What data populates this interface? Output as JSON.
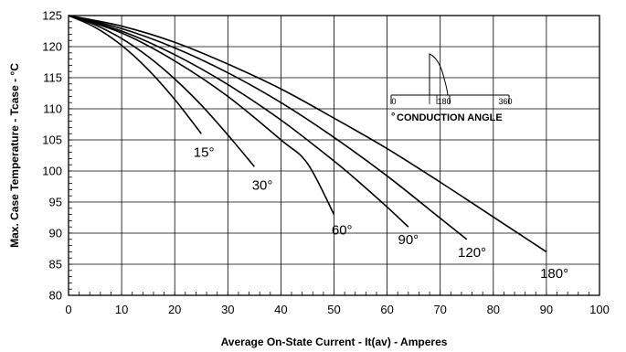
{
  "chart_data": {
    "type": "line",
    "title": "",
    "xlabel": "Average On-State Current - It(av) - Amperes",
    "ylabel": "Max. Case Temperature - Tcase - °C",
    "xlim": [
      0,
      100
    ],
    "ylim": [
      80,
      125
    ],
    "xticks": [
      "0",
      "10",
      "20",
      "30",
      "40",
      "50",
      "60",
      "70",
      "80",
      "90",
      "100"
    ],
    "yticks": [
      "80",
      "85",
      "90",
      "95",
      "100",
      "105",
      "110",
      "115",
      "120",
      "125"
    ],
    "grid": true,
    "series": [
      {
        "name": "15°",
        "x": [
          0,
          5,
          10,
          15,
          20,
          25
        ],
        "y": [
          125,
          123.1,
          120.2,
          116.3,
          111.5,
          106
        ]
      },
      {
        "name": "30°",
        "x": [
          0,
          5,
          10,
          15,
          20,
          25,
          30,
          35
        ],
        "y": [
          125,
          123.5,
          121.3,
          118.4,
          114.8,
          110.6,
          105.8,
          100.7
        ]
      },
      {
        "name": "60°",
        "x": [
          0,
          10,
          20,
          30,
          40,
          45,
          50
        ],
        "y": [
          125,
          122.2,
          117.7,
          112,
          105,
          101.2,
          93
        ]
      },
      {
        "name": "90°",
        "x": [
          0,
          10,
          20,
          30,
          40,
          50,
          55,
          60,
          64
        ],
        "y": [
          125,
          122.5,
          118.7,
          113.9,
          108.2,
          101.6,
          98,
          94.2,
          91
        ]
      },
      {
        "name": "120°",
        "x": [
          0,
          10,
          20,
          30,
          40,
          50,
          60,
          70,
          75
        ],
        "y": [
          125,
          122.9,
          119.8,
          115.8,
          111,
          105.4,
          99.2,
          92.4,
          89
        ]
      },
      {
        "name": "180°",
        "x": [
          0,
          10,
          20,
          30,
          40,
          50,
          60,
          70,
          80,
          90
        ],
        "y": [
          125,
          123.3,
          120.7,
          117.2,
          113.2,
          108.5,
          103.6,
          98.2,
          92.6,
          87
        ]
      }
    ],
    "curve_labels": [
      {
        "text": "15°",
        "x": 25.5,
        "y": 102.3
      },
      {
        "text": "30°",
        "x": 36.5,
        "y": 97
      },
      {
        "text": "60°",
        "x": 51.5,
        "y": 89.8
      },
      {
        "text": "90°",
        "x": 64,
        "y": 88.2
      },
      {
        "text": "120°",
        "x": 76,
        "y": 86.2
      },
      {
        "text": "180°",
        "x": 91.5,
        "y": 82.8
      }
    ],
    "inset": {
      "title": "CONDUCTION ANGLE",
      "title_prefix": "°",
      "scale_labels": [
        "0",
        "180",
        "360"
      ]
    }
  }
}
